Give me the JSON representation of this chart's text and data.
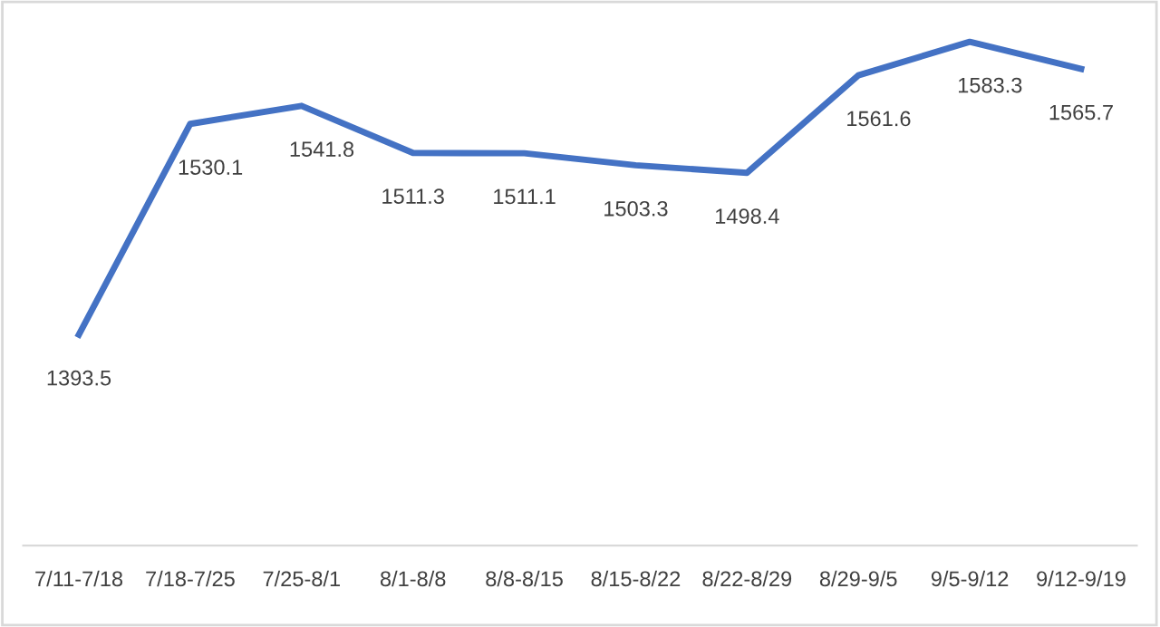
{
  "chart_data": {
    "type": "line",
    "categories": [
      "7/11-7/18",
      "7/18-7/25",
      "7/25-8/1",
      "8/1-8/8",
      "8/8-8/15",
      "8/15-8/22",
      "8/22-8/29",
      "8/29-9/5",
      "9/5-9/12",
      "9/12-9/19"
    ],
    "series": [
      {
        "color": "#4472c4",
        "values": [
          1393.5,
          1530.1,
          1541.8,
          1511.3,
          1511.1,
          1503.3,
          1498.4,
          1561.6,
          1583.3,
          1565.7
        ]
      }
    ],
    "data_labels": true,
    "grid": false,
    "legend": false,
    "marker": "none",
    "line_style": "solid",
    "tick_labels": "x"
  }
}
